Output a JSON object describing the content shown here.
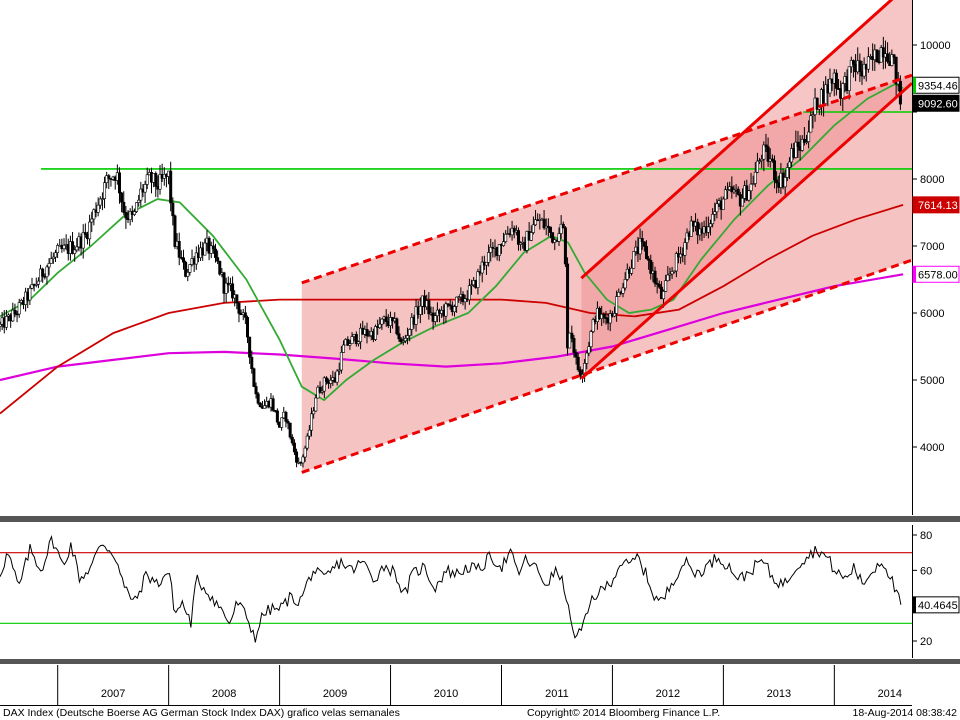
{
  "chart_data": [
    {
      "type": "candlestick",
      "title": "",
      "yscale": "linear",
      "ylim": [
        3100,
        10500
      ],
      "xlim": [
        2006.48,
        2014.7
      ],
      "y_ticks": [
        4000,
        5000,
        6000,
        7000,
        8000,
        9000,
        10000
      ],
      "y_tick_labels": [
        "4000",
        "5000",
        "6000",
        "7000",
        "8000",
        "",
        "10000"
      ],
      "grid": false,
      "price_waypoints": [
        [
          2006.48,
          5800
        ],
        [
          2006.62,
          6000
        ],
        [
          2006.75,
          6300
        ],
        [
          2006.9,
          6700
        ],
        [
          2007.0,
          6900
        ],
        [
          2007.15,
          7000
        ],
        [
          2007.25,
          7150
        ],
        [
          2007.35,
          7600
        ],
        [
          2007.45,
          8000
        ],
        [
          2007.53,
          8100
        ],
        [
          2007.6,
          7500
        ],
        [
          2007.68,
          7400
        ],
        [
          2007.75,
          7800
        ],
        [
          2007.83,
          8000
        ],
        [
          2007.9,
          7900
        ],
        [
          2008.0,
          8050
        ],
        [
          2008.05,
          7100
        ],
        [
          2008.15,
          6600
        ],
        [
          2008.25,
          6900
        ],
        [
          2008.35,
          7000
        ],
        [
          2008.45,
          6700
        ],
        [
          2008.5,
          6400
        ],
        [
          2008.58,
          6300
        ],
        [
          2008.7,
          5800
        ],
        [
          2008.78,
          4800
        ],
        [
          2008.85,
          4600
        ],
        [
          2008.92,
          4700
        ],
        [
          2009.0,
          4300
        ],
        [
          2009.05,
          4500
        ],
        [
          2009.12,
          4000
        ],
        [
          2009.18,
          3700
        ],
        [
          2009.25,
          4100
        ],
        [
          2009.33,
          4800
        ],
        [
          2009.42,
          5000
        ],
        [
          2009.5,
          5000
        ],
        [
          2009.58,
          5500
        ],
        [
          2009.66,
          5600
        ],
        [
          2009.75,
          5700
        ],
        [
          2009.85,
          5700
        ],
        [
          2009.95,
          5900
        ],
        [
          2010.05,
          5800
        ],
        [
          2010.1,
          5500
        ],
        [
          2010.2,
          5900
        ],
        [
          2010.3,
          6200
        ],
        [
          2010.38,
          5900
        ],
        [
          2010.45,
          6000
        ],
        [
          2010.55,
          6100
        ],
        [
          2010.65,
          6200
        ],
        [
          2010.75,
          6400
        ],
        [
          2010.85,
          6800
        ],
        [
          2010.95,
          6950
        ],
        [
          2011.05,
          7200
        ],
        [
          2011.12,
          7300
        ],
        [
          2011.18,
          6900
        ],
        [
          2011.25,
          7200
        ],
        [
          2011.33,
          7400
        ],
        [
          2011.42,
          7250
        ],
        [
          2011.48,
          7100
        ],
        [
          2011.52,
          7300
        ],
        [
          2011.57,
          7200
        ],
        [
          2011.59,
          5500
        ],
        [
          2011.62,
          5800
        ],
        [
          2011.68,
          5200
        ],
        [
          2011.72,
          5100
        ],
        [
          2011.78,
          5500
        ],
        [
          2011.85,
          6000
        ],
        [
          2011.92,
          5900
        ],
        [
          2012.0,
          6000
        ],
        [
          2012.08,
          6400
        ],
        [
          2012.18,
          6800
        ],
        [
          2012.25,
          7000
        ],
        [
          2012.3,
          6900
        ],
        [
          2012.38,
          6500
        ],
        [
          2012.45,
          6200
        ],
        [
          2012.5,
          6500
        ],
        [
          2012.55,
          6700
        ],
        [
          2012.62,
          6900
        ],
        [
          2012.7,
          7300
        ],
        [
          2012.8,
          7200
        ],
        [
          2012.88,
          7400
        ],
        [
          2013.0,
          7700
        ],
        [
          2013.08,
          7800
        ],
        [
          2013.15,
          7700
        ],
        [
          2013.25,
          7900
        ],
        [
          2013.35,
          8400
        ],
        [
          2013.42,
          8300
        ],
        [
          2013.48,
          8000
        ],
        [
          2013.55,
          8000
        ],
        [
          2013.62,
          8400
        ],
        [
          2013.7,
          8500
        ],
        [
          2013.78,
          8800
        ],
        [
          2013.85,
          9200
        ],
        [
          2013.92,
          9300
        ],
        [
          2014.0,
          9550
        ],
        [
          2014.05,
          9300
        ],
        [
          2014.12,
          9500
        ],
        [
          2014.18,
          9700
        ],
        [
          2014.25,
          9600
        ],
        [
          2014.32,
          9700
        ],
        [
          2014.4,
          9900
        ],
        [
          2014.45,
          10000
        ],
        [
          2014.52,
          9800
        ],
        [
          2014.56,
          9500
        ],
        [
          2014.6,
          9100
        ]
      ],
      "ma_20w_waypoints": [
        [
          2006.48,
          5950
        ],
        [
          2006.75,
          6200
        ],
        [
          2007.0,
          6600
        ],
        [
          2007.3,
          7000
        ],
        [
          2007.6,
          7450
        ],
        [
          2007.9,
          7700
        ],
        [
          2008.1,
          7650
        ],
        [
          2008.4,
          7150
        ],
        [
          2008.7,
          6500
        ],
        [
          2009.0,
          5600
        ],
        [
          2009.2,
          4900
        ],
        [
          2009.4,
          4700
        ],
        [
          2009.6,
          5000
        ],
        [
          2009.85,
          5300
        ],
        [
          2010.1,
          5550
        ],
        [
          2010.4,
          5800
        ],
        [
          2010.7,
          6000
        ],
        [
          2010.95,
          6400
        ],
        [
          2011.2,
          6900
        ],
        [
          2011.45,
          7150
        ],
        [
          2011.6,
          7050
        ],
        [
          2011.75,
          6600
        ],
        [
          2011.95,
          6200
        ],
        [
          2012.15,
          6000
        ],
        [
          2012.35,
          6050
        ],
        [
          2012.55,
          6200
        ],
        [
          2012.8,
          6800
        ],
        [
          2013.1,
          7400
        ],
        [
          2013.4,
          7900
        ],
        [
          2013.7,
          8300
        ],
        [
          2014.0,
          8800
        ],
        [
          2014.3,
          9200
        ],
        [
          2014.55,
          9420
        ],
        [
          2014.62,
          9354.46
        ]
      ],
      "ma_100w_waypoints": [
        [
          2006.48,
          4500
        ],
        [
          2007.0,
          5200
        ],
        [
          2007.5,
          5700
        ],
        [
          2008.0,
          6000
        ],
        [
          2008.5,
          6150
        ],
        [
          2009.0,
          6200
        ],
        [
          2009.5,
          6200
        ],
        [
          2010.0,
          6200
        ],
        [
          2010.5,
          6200
        ],
        [
          2011.0,
          6200
        ],
        [
          2011.4,
          6150
        ],
        [
          2011.8,
          6000
        ],
        [
          2012.2,
          5950
        ],
        [
          2012.6,
          6050
        ],
        [
          2013.0,
          6400
        ],
        [
          2013.4,
          6800
        ],
        [
          2013.8,
          7150
        ],
        [
          2014.2,
          7400
        ],
        [
          2014.62,
          7614.13
        ]
      ],
      "ma_200w_waypoints": [
        [
          2006.48,
          5000
        ],
        [
          2007.0,
          5200
        ],
        [
          2007.5,
          5300
        ],
        [
          2008.0,
          5400
        ],
        [
          2008.5,
          5420
        ],
        [
          2009.0,
          5380
        ],
        [
          2009.5,
          5320
        ],
        [
          2010.0,
          5250
        ],
        [
          2010.5,
          5200
        ],
        [
          2011.0,
          5250
        ],
        [
          2011.5,
          5350
        ],
        [
          2012.0,
          5500
        ],
        [
          2012.5,
          5750
        ],
        [
          2013.0,
          6000
        ],
        [
          2013.5,
          6200
        ],
        [
          2014.0,
          6400
        ],
        [
          2014.62,
          6578.0
        ]
      ],
      "horizontal_lines": [
        {
          "y": 8150,
          "x_start": 2006.85,
          "x_end": 2014.7,
          "color": "#00cc00"
        },
        {
          "y": 9000,
          "x_start": 2013.72,
          "x_end": 2014.7,
          "color": "#00cc00"
        }
      ],
      "channels": [
        {
          "lower": [
            [
              2009.2,
              3620
            ],
            [
              2014.7,
              6790
            ]
          ],
          "upper": [
            [
              2009.2,
              6450
            ],
            [
              2014.7,
              9550
            ]
          ],
          "style": "dashed"
        },
        {
          "lower": [
            [
              2011.72,
              5020
            ],
            [
              2014.7,
              9430
            ]
          ],
          "upper": [
            [
              2011.72,
              6520
            ],
            [
              2014.7,
              10950
            ]
          ],
          "style": "solid"
        }
      ],
      "value_tags": [
        {
          "text": "9354.46",
          "y": 9354.46,
          "bg": "#ffffff",
          "fg": "#000000",
          "border": "#000000",
          "stripe": "#00cc00"
        },
        {
          "text": "9092.60",
          "y": 9092.6,
          "bg": "#000000",
          "fg": "#ffffff",
          "border": "#000000",
          "stripe": "#000000"
        },
        {
          "text": "7614.13",
          "y": 7614.13,
          "bg": "#cc0000",
          "fg": "#ffffff",
          "border": "#cc0000",
          "stripe": "#cc0000"
        },
        {
          "text": "6578.00",
          "y": 6578.0,
          "bg": "#ffffff",
          "fg": "#000000",
          "border": "#ff00ff",
          "stripe": "#ff00ff"
        }
      ]
    },
    {
      "type": "line",
      "ylim": [
        10,
        87
      ],
      "y_ticks": [
        20,
        40,
        60,
        80
      ],
      "y_tick_labels": [
        "20",
        "",
        "60",
        "80"
      ],
      "levels": [
        {
          "y": 70,
          "color": "#cc0000"
        },
        {
          "y": 30,
          "color": "#00cc00"
        }
      ],
      "rsi_waypoints": [
        [
          2006.48,
          58
        ],
        [
          2006.55,
          70
        ],
        [
          2006.65,
          50
        ],
        [
          2006.75,
          72
        ],
        [
          2006.85,
          60
        ],
        [
          2006.95,
          78
        ],
        [
          2007.05,
          62
        ],
        [
          2007.12,
          75
        ],
        [
          2007.2,
          55
        ],
        [
          2007.3,
          62
        ],
        [
          2007.4,
          76
        ],
        [
          2007.52,
          68
        ],
        [
          2007.6,
          50
        ],
        [
          2007.7,
          42
        ],
        [
          2007.8,
          58
        ],
        [
          2007.9,
          52
        ],
        [
          2008.0,
          60
        ],
        [
          2008.06,
          35
        ],
        [
          2008.12,
          42
        ],
        [
          2008.2,
          30
        ],
        [
          2008.25,
          55
        ],
        [
          2008.35,
          48
        ],
        [
          2008.45,
          40
        ],
        [
          2008.55,
          30
        ],
        [
          2008.62,
          42
        ],
        [
          2008.7,
          34
        ],
        [
          2008.78,
          22
        ],
        [
          2008.85,
          35
        ],
        [
          2008.92,
          38
        ],
        [
          2009.0,
          38
        ],
        [
          2009.1,
          45
        ],
        [
          2009.18,
          42
        ],
        [
          2009.3,
          60
        ],
        [
          2009.4,
          55
        ],
        [
          2009.55,
          65
        ],
        [
          2009.65,
          60
        ],
        [
          2009.75,
          65
        ],
        [
          2009.85,
          55
        ],
        [
          2009.95,
          63
        ],
        [
          2010.05,
          58
        ],
        [
          2010.12,
          45
        ],
        [
          2010.2,
          58
        ],
        [
          2010.3,
          62
        ],
        [
          2010.4,
          50
        ],
        [
          2010.5,
          60
        ],
        [
          2010.6,
          58
        ],
        [
          2010.7,
          62
        ],
        [
          2010.8,
          60
        ],
        [
          2010.9,
          68
        ],
        [
          2011.0,
          62
        ],
        [
          2011.08,
          70
        ],
        [
          2011.15,
          58
        ],
        [
          2011.22,
          66
        ],
        [
          2011.3,
          62
        ],
        [
          2011.4,
          52
        ],
        [
          2011.5,
          60
        ],
        [
          2011.58,
          48
        ],
        [
          2011.62,
          30
        ],
        [
          2011.68,
          22
        ],
        [
          2011.75,
          30
        ],
        [
          2011.82,
          45
        ],
        [
          2011.9,
          48
        ],
        [
          2012.0,
          55
        ],
        [
          2012.08,
          65
        ],
        [
          2012.15,
          62
        ],
        [
          2012.22,
          68
        ],
        [
          2012.3,
          58
        ],
        [
          2012.38,
          45
        ],
        [
          2012.45,
          42
        ],
        [
          2012.55,
          55
        ],
        [
          2012.65,
          65
        ],
        [
          2012.75,
          58
        ],
        [
          2012.85,
          62
        ],
        [
          2012.95,
          68
        ],
        [
          2013.05,
          62
        ],
        [
          2013.15,
          55
        ],
        [
          2013.25,
          60
        ],
        [
          2013.35,
          66
        ],
        [
          2013.45,
          55
        ],
        [
          2013.55,
          52
        ],
        [
          2013.65,
          62
        ],
        [
          2013.75,
          68
        ],
        [
          2013.85,
          72
        ],
        [
          2013.95,
          66
        ],
        [
          2014.0,
          60
        ],
        [
          2014.1,
          55
        ],
        [
          2014.18,
          62
        ],
        [
          2014.25,
          52
        ],
        [
          2014.35,
          60
        ],
        [
          2014.42,
          66
        ],
        [
          2014.5,
          58
        ],
        [
          2014.55,
          48
        ],
        [
          2014.6,
          40.4645
        ]
      ],
      "value_tags": [
        {
          "text": "40.4645",
          "y": 40.4645,
          "bg": "#ffffff",
          "fg": "#000000",
          "border": "#000000",
          "stripe": "#000000"
        }
      ]
    }
  ],
  "x_axis": {
    "labels": [
      "2007",
      "2008",
      "2009",
      "2010",
      "2011",
      "2012",
      "2013",
      "2014"
    ],
    "label_positions": [
      2007.0,
      2008.0,
      2009.0,
      2010.0,
      2011.0,
      2012.0,
      2013.0,
      2014.0
    ]
  },
  "footer": {
    "left": "DAX Index (Deutsche Boerse AG German Stock Index DAX) grafico velas semanales",
    "center": "Copyright© 2014 Bloomberg Finance L.P.",
    "right": "18-Aug-2014 08:38:42"
  },
  "colors": {
    "price": "#000000",
    "ma20": "#33aa33",
    "ma100": "#cc0000",
    "ma200": "#dd00dd",
    "channel": "#ee0000",
    "channel_fill": "#f4b8b8",
    "channel_fill_inner": "#ee8e8e",
    "rsi": "#000000"
  }
}
